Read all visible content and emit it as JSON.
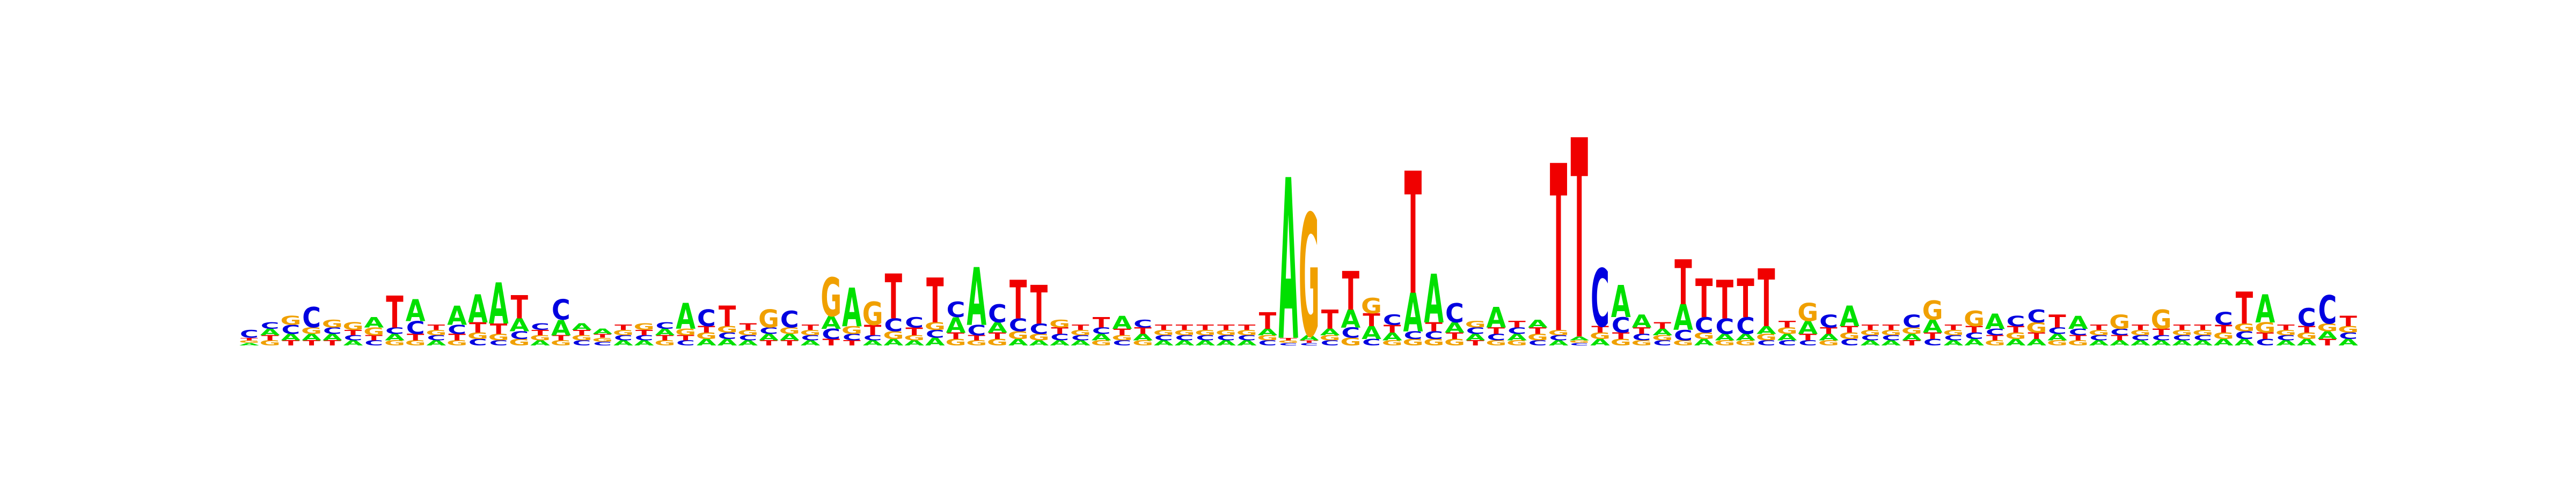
{
  "chart_data": {
    "type": "sequence-logo",
    "title": "",
    "xlabel": "",
    "ylabel": "",
    "axes_visible": false,
    "grid": false,
    "legend": "none",
    "colors": {
      "A": "#00e000",
      "C": "#0000e0",
      "G": "#f0a000",
      "T": "#f00000"
    },
    "units": "bits",
    "positions": [
      {
        "A": 0.02,
        "C": 0.06,
        "G": 0.02,
        "T": 0.02
      },
      {
        "A": 0.05,
        "C": 0.05,
        "G": 0.04,
        "T": 0.04
      },
      {
        "A": 0.05,
        "C": 0.07,
        "G": 0.07,
        "T": 0.04
      },
      {
        "A": 0.05,
        "C": 0.16,
        "G": 0.05,
        "T": 0.04
      },
      {
        "A": 0.05,
        "C": 0.05,
        "G": 0.06,
        "T": 0.04
      },
      {
        "A": 0.04,
        "C": 0.04,
        "G": 0.06,
        "T": 0.04
      },
      {
        "A": 0.08,
        "C": 0.04,
        "G": 0.06,
        "T": 0.04
      },
      {
        "A": 0.05,
        "C": 0.05,
        "G": 0.04,
        "T": 0.25
      },
      {
        "A": 0.17,
        "C": 0.1,
        "G": 0.04,
        "T": 0.05
      },
      {
        "A": 0.04,
        "C": 0.04,
        "G": 0.04,
        "T": 0.04
      },
      {
        "A": 0.15,
        "C": 0.07,
        "G": 0.04,
        "T": 0.05
      },
      {
        "A": 0.22,
        "C": 0.05,
        "G": 0.05,
        "T": 0.08
      },
      {
        "A": 0.32,
        "C": 0.04,
        "G": 0.05,
        "T": 0.08
      },
      {
        "A": 0.1,
        "C": 0.06,
        "G": 0.05,
        "T": 0.18
      },
      {
        "A": 0.04,
        "C": 0.05,
        "G": 0.04,
        "T": 0.04
      },
      {
        "A": 0.12,
        "C": 0.16,
        "G": 0.04,
        "T": 0.04
      },
      {
        "A": 0.05,
        "C": 0.04,
        "G": 0.04,
        "T": 0.04
      },
      {
        "A": 0.04,
        "C": 0.03,
        "G": 0.03,
        "T": 0.03
      },
      {
        "A": 0.04,
        "C": 0.04,
        "G": 0.04,
        "T": 0.04
      },
      {
        "A": 0.04,
        "C": 0.04,
        "G": 0.05,
        "T": 0.04
      },
      {
        "A": 0.05,
        "C": 0.05,
        "G": 0.04,
        "T": 0.04
      },
      {
        "A": 0.2,
        "C": 0.04,
        "G": 0.05,
        "T": 0.04
      },
      {
        "A": 0.05,
        "C": 0.13,
        "G": 0.05,
        "T": 0.05
      },
      {
        "A": 0.05,
        "C": 0.05,
        "G": 0.05,
        "T": 0.16
      },
      {
        "A": 0.04,
        "C": 0.04,
        "G": 0.04,
        "T": 0.05
      },
      {
        "A": 0.05,
        "C": 0.05,
        "G": 0.14,
        "T": 0.04
      },
      {
        "A": 0.05,
        "C": 0.13,
        "G": 0.05,
        "T": 0.04
      },
      {
        "A": 0.04,
        "C": 0.04,
        "G": 0.04,
        "T": 0.04
      },
      {
        "A": 0.1,
        "C": 0.08,
        "G": 0.3,
        "T": 0.05
      },
      {
        "A": 0.3,
        "C": 0.05,
        "G": 0.06,
        "T": 0.04
      },
      {
        "A": 0.04,
        "C": 0.04,
        "G": 0.18,
        "T": 0.08
      },
      {
        "A": 0.05,
        "C": 0.1,
        "G": 0.06,
        "T": 0.35
      },
      {
        "A": 0.04,
        "C": 0.08,
        "G": 0.04,
        "T": 0.06
      },
      {
        "A": 0.06,
        "C": 0.06,
        "G": 0.06,
        "T": 0.35
      },
      {
        "A": 0.12,
        "C": 0.12,
        "G": 0.05,
        "T": 0.05
      },
      {
        "A": 0.45,
        "C": 0.08,
        "G": 0.04,
        "T": 0.04
      },
      {
        "A": 0.08,
        "C": 0.14,
        "G": 0.05,
        "T": 0.05
      },
      {
        "A": 0.05,
        "C": 0.1,
        "G": 0.06,
        "T": 0.3
      },
      {
        "A": 0.04,
        "C": 0.08,
        "G": 0.05,
        "T": 0.3
      },
      {
        "A": 0.04,
        "C": 0.05,
        "G": 0.06,
        "T": 0.05
      },
      {
        "A": 0.04,
        "C": 0.04,
        "G": 0.04,
        "T": 0.04
      },
      {
        "A": 0.05,
        "C": 0.05,
        "G": 0.04,
        "T": 0.08
      },
      {
        "A": 0.1,
        "C": 0.04,
        "G": 0.04,
        "T": 0.05
      },
      {
        "A": 0.05,
        "C": 0.06,
        "G": 0.04,
        "T": 0.05
      },
      {
        "A": 0.04,
        "C": 0.04,
        "G": 0.04,
        "T": 0.04
      },
      {
        "A": 0.04,
        "C": 0.04,
        "G": 0.04,
        "T": 0.04
      },
      {
        "A": 0.04,
        "C": 0.04,
        "G": 0.04,
        "T": 0.04
      },
      {
        "A": 0.04,
        "C": 0.04,
        "G": 0.04,
        "T": 0.04
      },
      {
        "A": 0.04,
        "C": 0.04,
        "G": 0.04,
        "T": 0.04
      },
      {
        "A": 0.05,
        "C": 0.04,
        "G": 0.04,
        "T": 0.13
      },
      {
        "A": 1.25,
        "C": 0.02,
        "G": 0.02,
        "T": 0.02
      },
      {
        "A": 0.04,
        "C": 0.02,
        "G": 0.95,
        "T": 0.02
      },
      {
        "A": 0.05,
        "C": 0.04,
        "G": 0.04,
        "T": 0.15
      },
      {
        "A": 0.14,
        "C": 0.08,
        "G": 0.06,
        "T": 0.3
      },
      {
        "A": 0.1,
        "C": 0.05,
        "G": 0.12,
        "T": 0.1
      },
      {
        "A": 0.06,
        "C": 0.08,
        "G": 0.04,
        "T": 0.06
      },
      {
        "A": 0.3,
        "C": 0.06,
        "G": 0.05,
        "T": 0.95
      },
      {
        "A": 0.38,
        "C": 0.06,
        "G": 0.05,
        "T": 0.07
      },
      {
        "A": 0.08,
        "C": 0.15,
        "G": 0.05,
        "T": 0.05
      },
      {
        "A": 0.05,
        "C": 0.05,
        "G": 0.05,
        "T": 0.04
      },
      {
        "A": 0.16,
        "C": 0.05,
        "G": 0.04,
        "T": 0.05
      },
      {
        "A": 0.05,
        "C": 0.05,
        "G": 0.04,
        "T": 0.05
      },
      {
        "A": 0.06,
        "C": 0.04,
        "G": 0.05,
        "T": 0.05
      },
      {
        "A": 0.04,
        "C": 0.04,
        "G": 0.04,
        "T": 1.3
      },
      {
        "A": 0.03,
        "C": 0.02,
        "G": 0.02,
        "T": 1.55
      },
      {
        "A": 0.05,
        "C": 0.45,
        "G": 0.05,
        "T": 0.05
      },
      {
        "A": 0.25,
        "C": 0.12,
        "G": 0.05,
        "T": 0.05
      },
      {
        "A": 0.1,
        "C": 0.05,
        "G": 0.04,
        "T": 0.05
      },
      {
        "A": 0.05,
        "C": 0.04,
        "G": 0.04,
        "T": 0.05
      },
      {
        "A": 0.2,
        "C": 0.08,
        "G": 0.04,
        "T": 0.35
      },
      {
        "A": 0.05,
        "C": 0.12,
        "G": 0.05,
        "T": 0.3
      },
      {
        "A": 0.05,
        "C": 0.12,
        "G": 0.04,
        "T": 0.3
      },
      {
        "A": 0.05,
        "C": 0.13,
        "G": 0.04,
        "T": 0.3
      },
      {
        "A": 0.06,
        "C": 0.04,
        "G": 0.05,
        "T": 0.45
      },
      {
        "A": 0.05,
        "C": 0.04,
        "G": 0.05,
        "T": 0.05
      },
      {
        "A": 0.1,
        "C": 0.04,
        "G": 0.14,
        "T": 0.05
      },
      {
        "A": 0.05,
        "C": 0.1,
        "G": 0.04,
        "T": 0.05
      },
      {
        "A": 0.16,
        "C": 0.05,
        "G": 0.05,
        "T": 0.05
      },
      {
        "A": 0.04,
        "C": 0.04,
        "G": 0.04,
        "T": 0.04
      },
      {
        "A": 0.04,
        "C": 0.04,
        "G": 0.04,
        "T": 0.04
      },
      {
        "A": 0.05,
        "C": 0.1,
        "G": 0.05,
        "T": 0.04
      },
      {
        "A": 0.1,
        "C": 0.05,
        "G": 0.15,
        "T": 0.05
      },
      {
        "A": 0.04,
        "C": 0.04,
        "G": 0.04,
        "T": 0.04
      },
      {
        "A": 0.05,
        "C": 0.05,
        "G": 0.12,
        "T": 0.05
      },
      {
        "A": 0.12,
        "C": 0.05,
        "G": 0.04,
        "T": 0.04
      },
      {
        "A": 0.05,
        "C": 0.08,
        "G": 0.05,
        "T": 0.05
      },
      {
        "A": 0.05,
        "C": 0.1,
        "G": 0.08,
        "T": 0.05
      },
      {
        "A": 0.05,
        "C": 0.05,
        "G": 0.04,
        "T": 0.1
      },
      {
        "A": 0.1,
        "C": 0.05,
        "G": 0.04,
        "T": 0.04
      },
      {
        "A": 0.04,
        "C": 0.04,
        "G": 0.04,
        "T": 0.04
      },
      {
        "A": 0.04,
        "C": 0.05,
        "G": 0.11,
        "T": 0.04
      },
      {
        "A": 0.04,
        "C": 0.04,
        "G": 0.04,
        "T": 0.04
      },
      {
        "A": 0.04,
        "C": 0.04,
        "G": 0.15,
        "T": 0.05
      },
      {
        "A": 0.04,
        "C": 0.04,
        "G": 0.04,
        "T": 0.04
      },
      {
        "A": 0.04,
        "C": 0.04,
        "G": 0.04,
        "T": 0.04
      },
      {
        "A": 0.05,
        "C": 0.1,
        "G": 0.05,
        "T": 0.06
      },
      {
        "A": 0.05,
        "C": 0.06,
        "G": 0.06,
        "T": 0.25
      },
      {
        "A": 0.22,
        "C": 0.05,
        "G": 0.08,
        "T": 0.05
      },
      {
        "A": 0.04,
        "C": 0.04,
        "G": 0.04,
        "T": 0.04
      },
      {
        "A": 0.05,
        "C": 0.14,
        "G": 0.05,
        "T": 0.05
      },
      {
        "A": 0.06,
        "C": 0.22,
        "G": 0.06,
        "T": 0.05
      },
      {
        "A": 0.05,
        "C": 0.05,
        "G": 0.05,
        "T": 0.08
      }
    ]
  }
}
